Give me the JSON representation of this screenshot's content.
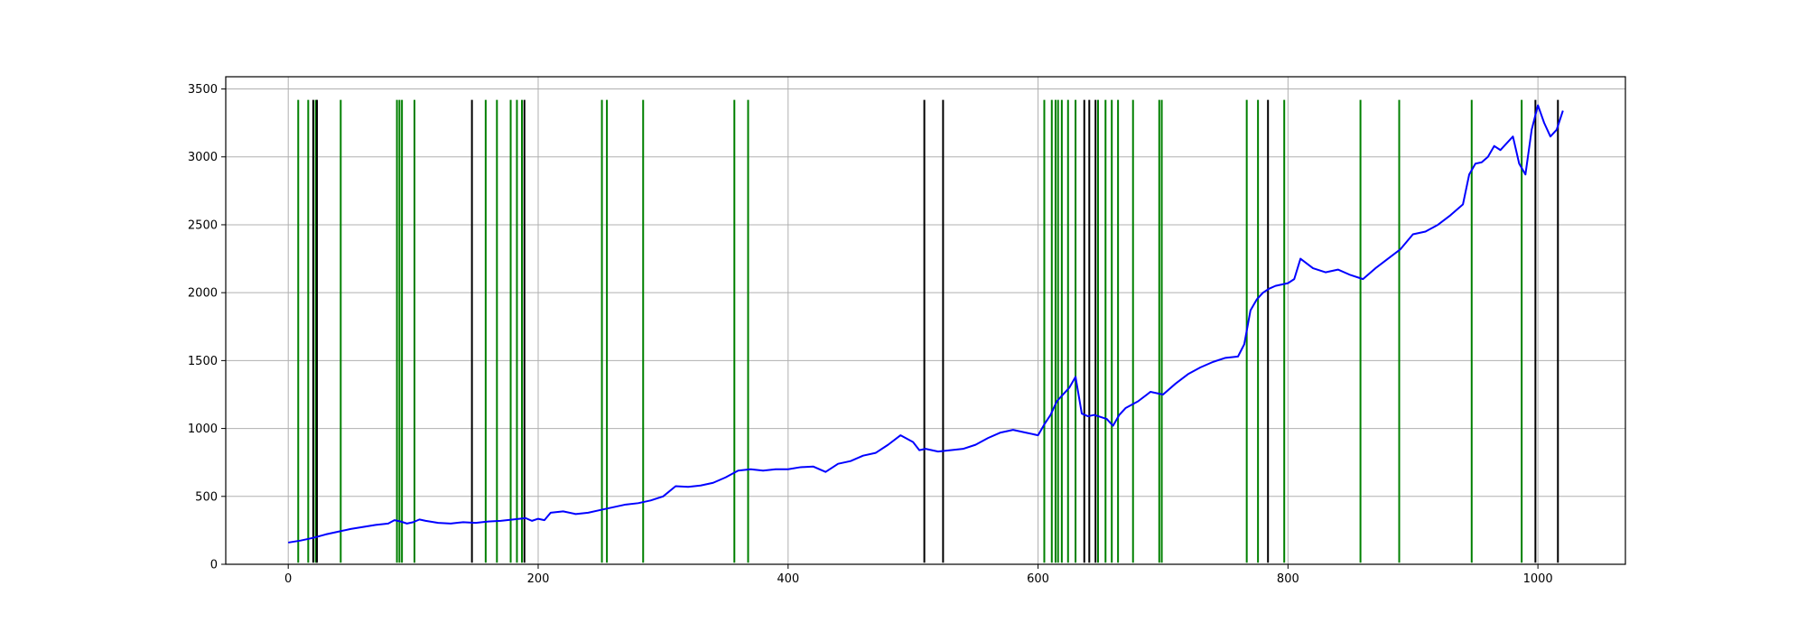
{
  "chart_data": {
    "type": "line",
    "title": "",
    "xlabel": "",
    "ylabel": "",
    "xlim": [
      -50,
      1070
    ],
    "ylim": [
      0,
      3590
    ],
    "grid": true,
    "legend": "none",
    "xticks": [
      0,
      200,
      400,
      600,
      800,
      1000
    ],
    "yticks": [
      0,
      500,
      1000,
      1500,
      2000,
      2500,
      3000,
      3500
    ],
    "colors": {
      "line": "#0000ff",
      "buy_marker": "#008000",
      "sell_marker": "#000000",
      "grid": "#b0b0b0"
    },
    "marker_range": [
      12,
      3420
    ],
    "series": [
      {
        "type": "line",
        "x": [
          0,
          10,
          20,
          30,
          40,
          50,
          60,
          70,
          80,
          85,
          90,
          95,
          100,
          105,
          110,
          120,
          130,
          140,
          150,
          160,
          170,
          180,
          190,
          195,
          200,
          205,
          210,
          220,
          230,
          240,
          250,
          260,
          270,
          280,
          290,
          300,
          310,
          320,
          330,
          340,
          350,
          360,
          370,
          380,
          390,
          400,
          410,
          420,
          430,
          440,
          450,
          460,
          470,
          480,
          490,
          500,
          505,
          510,
          520,
          530,
          540,
          550,
          560,
          570,
          580,
          590,
          600,
          605,
          610,
          615,
          620,
          625,
          630,
          635,
          640,
          645,
          650,
          655,
          660,
          665,
          670,
          680,
          690,
          700,
          710,
          720,
          730,
          740,
          750,
          760,
          765,
          770,
          775,
          780,
          785,
          790,
          795,
          800,
          805,
          810,
          820,
          830,
          840,
          850,
          860,
          870,
          880,
          890,
          900,
          910,
          920,
          930,
          940,
          945,
          950,
          955,
          960,
          965,
          970,
          975,
          980,
          985,
          990,
          995,
          1000,
          1005,
          1010,
          1015,
          1020
        ],
        "y": [
          160,
          175,
          195,
          220,
          240,
          260,
          275,
          290,
          300,
          325,
          315,
          300,
          310,
          330,
          320,
          305,
          300,
          310,
          305,
          315,
          320,
          330,
          340,
          320,
          335,
          325,
          380,
          390,
          370,
          380,
          400,
          420,
          440,
          450,
          470,
          500,
          575,
          570,
          580,
          600,
          640,
          690,
          700,
          690,
          700,
          700,
          715,
          720,
          680,
          740,
          760,
          800,
          820,
          880,
          950,
          900,
          840,
          850,
          830,
          840,
          850,
          880,
          930,
          970,
          990,
          970,
          950,
          1030,
          1100,
          1200,
          1250,
          1300,
          1380,
          1110,
          1090,
          1100,
          1085,
          1070,
          1020,
          1100,
          1150,
          1200,
          1270,
          1250,
          1330,
          1400,
          1450,
          1490,
          1520,
          1530,
          1620,
          1870,
          1950,
          2000,
          2030,
          2050,
          2060,
          2070,
          2100,
          2250,
          2180,
          2150,
          2170,
          2130,
          2100,
          2180,
          2250,
          2320,
          2430,
          2450,
          2500,
          2570,
          2650,
          2870,
          2950,
          2960,
          3000,
          3080,
          3050,
          3100,
          3150,
          2950,
          2870,
          3200,
          3380,
          3250,
          3150,
          3200,
          3340
        ]
      }
    ],
    "buy_markers": [
      8,
      16,
      22,
      42,
      87,
      89,
      91,
      101,
      158,
      167,
      178,
      183,
      187,
      251,
      255,
      284,
      357,
      368,
      605,
      611,
      614,
      616,
      619,
      624,
      630,
      648,
      654,
      659,
      664,
      676,
      697,
      699,
      767,
      776,
      797,
      858,
      889,
      947,
      987
    ],
    "sell_markers": [
      20,
      23,
      147,
      189,
      509,
      524,
      637,
      641,
      646,
      784,
      998,
      1016
    ]
  }
}
